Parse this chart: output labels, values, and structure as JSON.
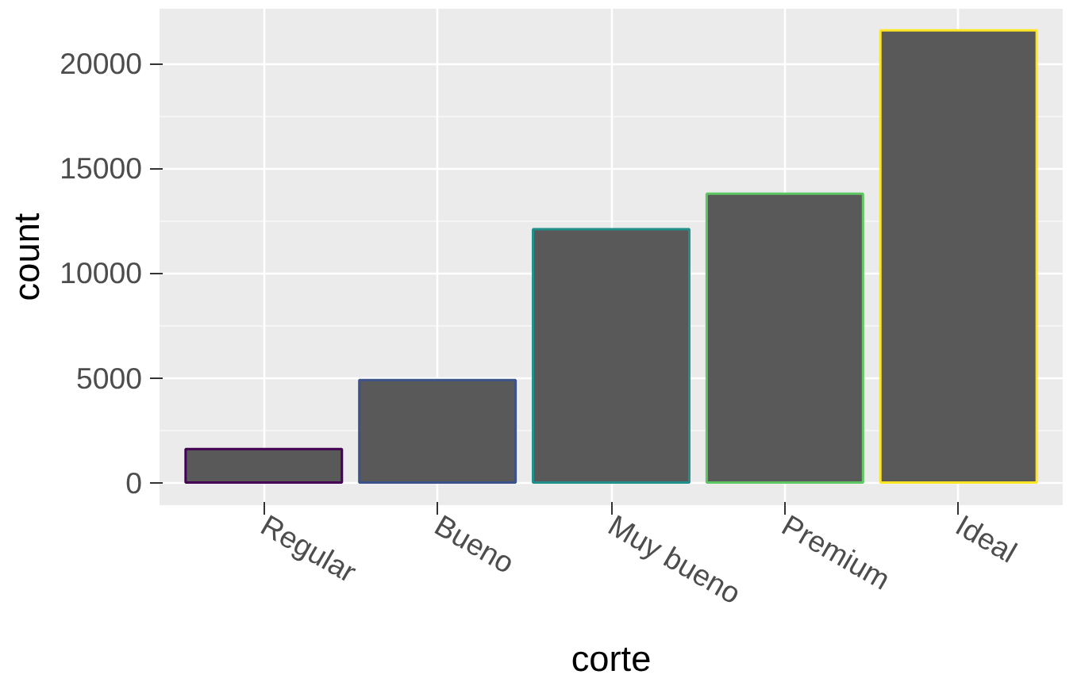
{
  "chart_data": {
    "type": "bar",
    "xlabel": "corte",
    "ylabel": "count",
    "categories": [
      "Regular",
      "Bueno",
      "Muy bueno",
      "Premium",
      "Ideal"
    ],
    "values": [
      1600,
      4900,
      12100,
      13800,
      21600
    ],
    "color": "#595959",
    "colors": [
      "#440154",
      "#3b528b",
      "#21908c",
      "#5dc863",
      "#fde725"
    ],
    "ylim": [
      -1078,
      22629
    ],
    "yticks": [
      0,
      5000,
      10000,
      15000,
      20000
    ],
    "grid": true
  }
}
